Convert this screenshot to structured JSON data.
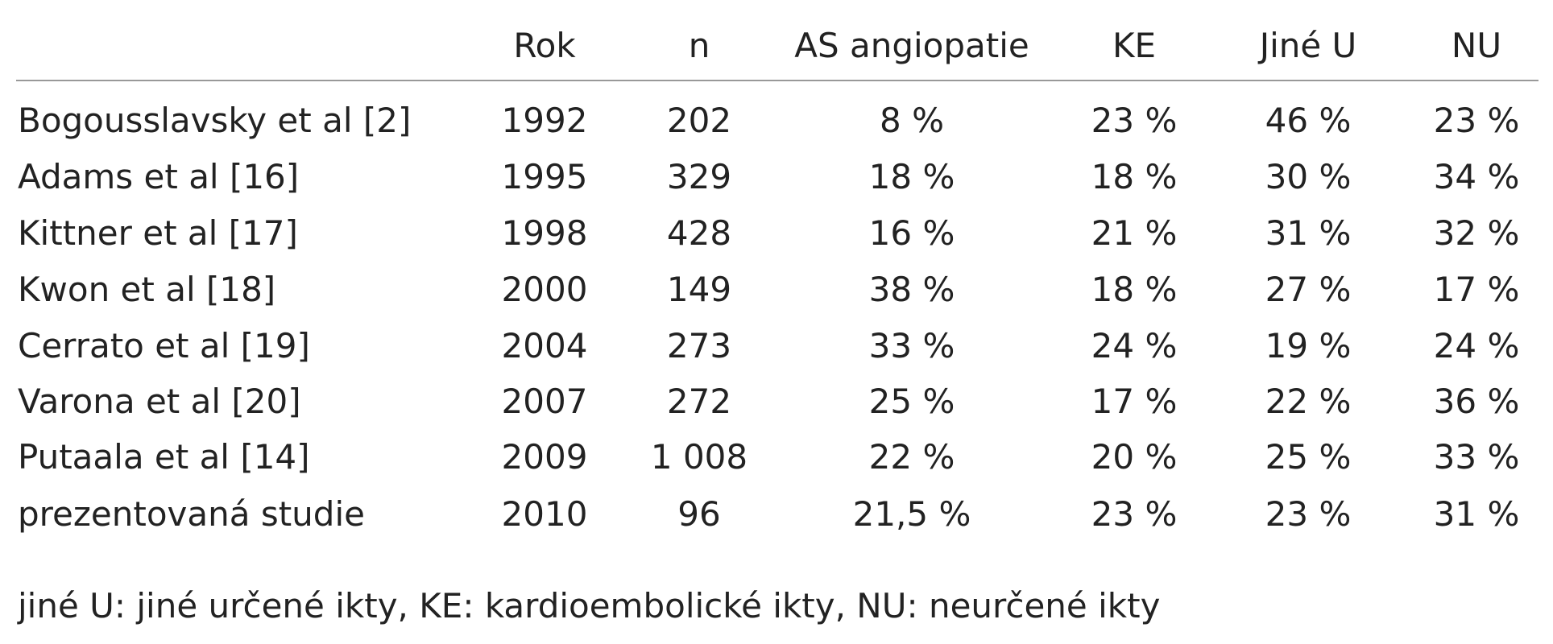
{
  "table": {
    "header": [
      "Rok",
      "n",
      "AS angiopatie",
      "KE",
      "Jiné U",
      "NU"
    ],
    "rows": [
      [
        "Bogousslavsky et al [2]",
        "1992",
        "202",
        "8 %",
        "23 %",
        "46 %",
        "23 %"
      ],
      [
        "Adams et al [16]",
        "1995",
        "329",
        "18 %",
        "18 %",
        "30 %",
        "34 %"
      ],
      [
        "Kittner et al [17]",
        "1998",
        "428",
        "16 %",
        "21 %",
        "31 %",
        "32 %"
      ],
      [
        "Kwon et al [18]",
        "2000",
        "149",
        "38 %",
        "18 %",
        "27 %",
        "17 %"
      ],
      [
        "Cerrato et al [19]",
        "2004",
        "273",
        "33 %",
        "24 %",
        "19 %",
        "24 %"
      ],
      [
        "Varona et al [20]",
        "2007",
        "272",
        "25 %",
        "17 %",
        "22 %",
        "36 %"
      ],
      [
        "Putaala et al [14]",
        "2009",
        "1 008",
        "22 %",
        "20 %",
        "25 %",
        "33 %"
      ],
      [
        "prezentovaná studie",
        "2010",
        "96",
        "21,5 %",
        "23 %",
        "23 %",
        "31 %"
      ]
    ]
  },
  "footnote": "jiné U: jiné určené ikty, KE: kardioembolické ikty, NU: neurčené ikty"
}
